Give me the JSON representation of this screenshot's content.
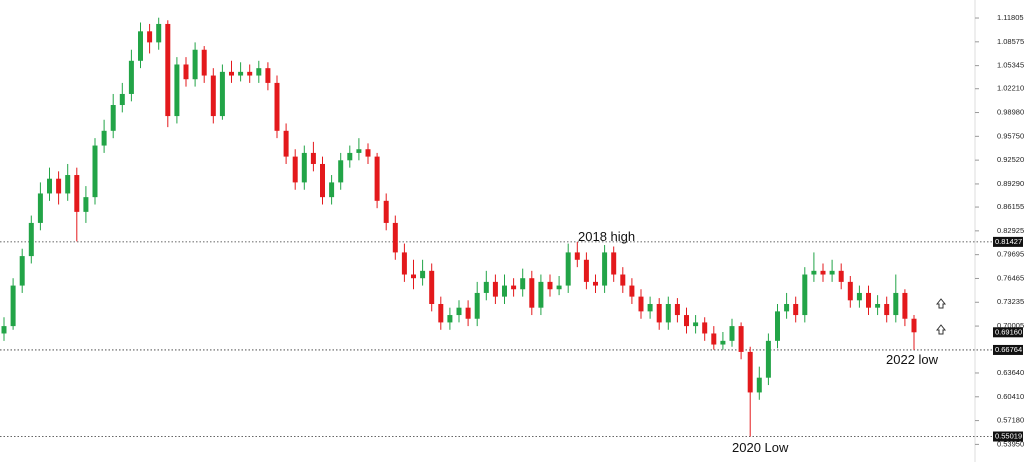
{
  "chart_data": {
    "type": "candlestick",
    "up_color": "#22a447",
    "down_color": "#e3191c",
    "ylim": [
      0.5156,
      1.1425
    ],
    "yticks": [
      1.11805,
      1.08575,
      1.05345,
      {
        "value": 1.0221,
        "label": "1.02210"
      },
      {
        "value": 0.9898,
        "label": "0.98980"
      },
      {
        "value": 0.9575,
        "label": "0.95750"
      },
      {
        "value": 0.9252,
        "label": "0.92520"
      },
      {
        "value": 0.8929,
        "label": "0.89290"
      },
      0.86155,
      0.82925,
      0.79695,
      0.76465,
      0.73235,
      0.70005,
      {
        "value": 0.6364,
        "label": "0.63640"
      },
      {
        "value": 0.6041,
        "label": "0.60410"
      },
      {
        "value": 0.5718,
        "label": "0.57180"
      },
      {
        "value": 0.5395,
        "label": "0.53950"
      }
    ],
    "levels": [
      0.81427,
      0.66764,
      0.55019
    ],
    "last_price": {
      "value": 0.6916,
      "label": "0.69160"
    },
    "annotations": [
      "2018 high",
      "2022 low",
      "2020 Low"
    ],
    "open": [
      0.69,
      0.7,
      0.755,
      0.795,
      0.84,
      0.88,
      0.9,
      0.88,
      0.905,
      0.855,
      0.875,
      0.945,
      0.965,
      1.0,
      1.015,
      1.06,
      1.1,
      1.085,
      1.11,
      0.985,
      1.055,
      1.035,
      1.075,
      1.04,
      0.985,
      1.045,
      1.04,
      1.045,
      1.04,
      1.05,
      1.03,
      0.965,
      0.93,
      0.895,
      0.935,
      0.92,
      0.875,
      0.895,
      0.925,
      0.935,
      0.94,
      0.93,
      0.87,
      0.84,
      0.8,
      0.77,
      0.765,
      0.775,
      0.73,
      0.705,
      0.715,
      0.725,
      0.71,
      0.745,
      0.76,
      0.74,
      0.755,
      0.75,
      0.765,
      0.725,
      0.76,
      0.75,
      0.755,
      0.8,
      0.79,
      0.76,
      0.755,
      0.8,
      0.77,
      0.755,
      0.74,
      0.72,
      0.73,
      0.705,
      0.73,
      0.715,
      0.7,
      0.705,
      0.69,
      0.675,
      0.68,
      0.7,
      0.665,
      0.61,
      0.63,
      0.68,
      0.72,
      0.73,
      0.715,
      0.77,
      0.775,
      0.77,
      0.775,
      0.76,
      0.735,
      0.745,
      0.725,
      0.73,
      0.715,
      0.745,
      0.71
    ],
    "high": [
      0.712,
      0.765,
      0.805,
      0.85,
      0.895,
      0.915,
      0.91,
      0.92,
      0.915,
      0.89,
      0.955,
      0.98,
      1.015,
      1.03,
      1.075,
      1.112,
      1.11,
      1.1185,
      1.115,
      1.065,
      1.065,
      1.085,
      1.08,
      1.05,
      1.055,
      1.06,
      1.058,
      1.055,
      1.06,
      1.058,
      1.04,
      0.975,
      0.94,
      0.945,
      0.95,
      0.93,
      0.905,
      0.935,
      0.945,
      0.955,
      0.948,
      0.935,
      0.88,
      0.85,
      0.812,
      0.79,
      0.79,
      0.785,
      0.74,
      0.725,
      0.735,
      0.735,
      0.76,
      0.775,
      0.77,
      0.77,
      0.765,
      0.778,
      0.775,
      0.77,
      0.77,
      0.768,
      0.812,
      0.8143,
      0.8,
      0.77,
      0.81,
      0.808,
      0.78,
      0.765,
      0.75,
      0.74,
      0.738,
      0.74,
      0.738,
      0.725,
      0.715,
      0.712,
      0.7,
      0.692,
      0.71,
      0.705,
      0.672,
      0.645,
      0.69,
      0.73,
      0.745,
      0.74,
      0.78,
      0.8,
      0.785,
      0.79,
      0.785,
      0.768,
      0.755,
      0.755,
      0.742,
      0.74,
      0.77,
      0.75,
      0.715
    ],
    "low": [
      0.68,
      0.695,
      0.745,
      0.785,
      0.83,
      0.87,
      0.865,
      0.87,
      0.815,
      0.84,
      0.865,
      0.935,
      0.955,
      0.99,
      1.005,
      1.05,
      1.07,
      1.075,
      0.97,
      0.975,
      1.025,
      1.025,
      1.03,
      0.975,
      0.98,
      1.03,
      1.032,
      1.03,
      1.03,
      1.02,
      0.955,
      0.92,
      0.885,
      0.885,
      0.91,
      0.865,
      0.865,
      0.885,
      0.915,
      0.925,
      0.92,
      0.86,
      0.83,
      0.79,
      0.76,
      0.75,
      0.755,
      0.72,
      0.695,
      0.695,
      0.705,
      0.7,
      0.7,
      0.735,
      0.73,
      0.73,
      0.74,
      0.74,
      0.715,
      0.715,
      0.74,
      0.742,
      0.745,
      0.78,
      0.75,
      0.745,
      0.745,
      0.76,
      0.745,
      0.73,
      0.71,
      0.71,
      0.695,
      0.695,
      0.705,
      0.69,
      0.69,
      0.68,
      0.668,
      0.668,
      0.672,
      0.655,
      0.5502,
      0.6,
      0.62,
      0.67,
      0.71,
      0.705,
      0.705,
      0.76,
      0.76,
      0.76,
      0.75,
      0.725,
      0.725,
      0.715,
      0.715,
      0.705,
      0.705,
      0.7,
      0.6676
    ],
    "close": [
      0.7,
      0.755,
      0.795,
      0.84,
      0.88,
      0.9,
      0.88,
      0.905,
      0.855,
      0.875,
      0.945,
      0.965,
      1.0,
      1.015,
      1.06,
      1.1,
      1.085,
      1.11,
      0.985,
      1.055,
      1.035,
      1.075,
      1.04,
      0.985,
      1.045,
      1.04,
      1.045,
      1.04,
      1.05,
      1.03,
      0.965,
      0.93,
      0.895,
      0.935,
      0.92,
      0.875,
      0.895,
      0.925,
      0.935,
      0.94,
      0.93,
      0.87,
      0.84,
      0.8,
      0.77,
      0.765,
      0.775,
      0.73,
      0.705,
      0.715,
      0.725,
      0.71,
      0.745,
      0.76,
      0.74,
      0.755,
      0.75,
      0.765,
      0.725,
      0.76,
      0.75,
      0.755,
      0.8,
      0.79,
      0.76,
      0.755,
      0.8,
      0.77,
      0.755,
      0.74,
      0.72,
      0.73,
      0.705,
      0.73,
      0.715,
      0.7,
      0.705,
      0.69,
      0.675,
      0.68,
      0.7,
      0.665,
      0.61,
      0.63,
      0.68,
      0.72,
      0.73,
      0.715,
      0.77,
      0.775,
      0.77,
      0.775,
      0.76,
      0.735,
      0.745,
      0.725,
      0.73,
      0.715,
      0.745,
      0.71,
      0.6916
    ]
  }
}
